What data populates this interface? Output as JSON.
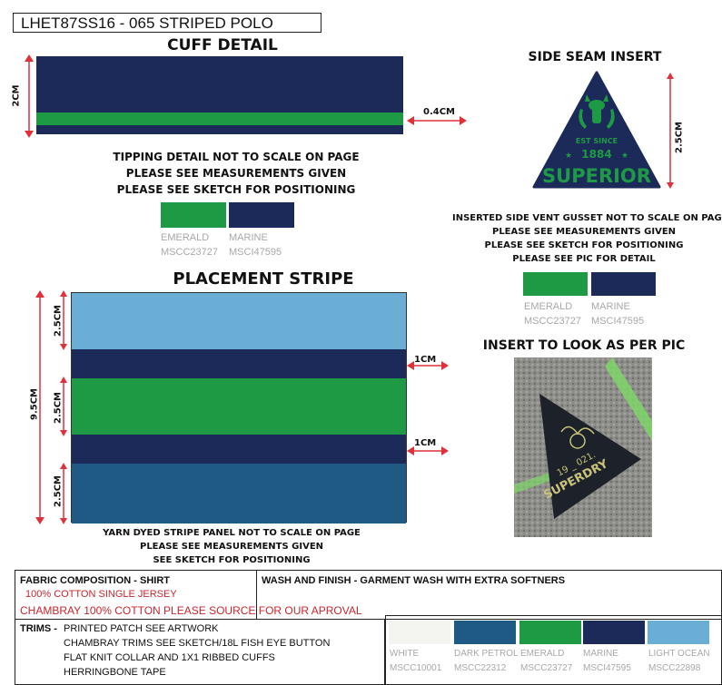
{
  "title": "LHET87SS16 - 065 STRIPED POLO",
  "cuff": {
    "heading": "CUFF  DETAIL",
    "height_label": "2CM",
    "tip_label": "0.4CM",
    "notes": [
      "TIPPING DETAIL NOT TO SCALE ON PAGE",
      "PLEASE SEE MEASUREMENTS GIVEN",
      "PLEASE SEE SKETCH FOR POSITIONING"
    ],
    "swatches": [
      {
        "name": "EMERALD",
        "code": "MSCC23727",
        "color": "#1e9a45"
      },
      {
        "name": "MARINE",
        "code": "MSCI47595",
        "color": "#1b2a58"
      }
    ]
  },
  "stripe": {
    "heading": "PLACEMENT STRIPE",
    "total_label": "9.5CM",
    "segment_labels": [
      "2.5CM",
      "2.5CM",
      "2.5CM"
    ],
    "gap_labels": [
      "1CM",
      "1CM"
    ],
    "notes": [
      "YARN DYED STRIPE PANEL NOT TO SCALE ON PAGE",
      "PLEASE SEE MEASUREMENTS GIVEN",
      "SEE SKETCH FOR POSITIONING"
    ],
    "colors": {
      "light_ocean": "#6aaed6",
      "marine": "#1b2a58",
      "emerald": "#1e9a45",
      "dark_petrol": "#1e5a84"
    }
  },
  "side_seam": {
    "heading": "SIDE SEAM INSERT",
    "height_label": "2.5CM",
    "badge": {
      "est": "EST SINCE",
      "year": "1884",
      "brand": "SUPERIOR"
    },
    "notes": [
      "INSERTED SIDE VENT GUSSET NOT TO SCALE ON PAGE",
      "PLEASE SEE MEASUREMENTS GIVEN",
      "PLEASE SEE SKETCH FOR POSITIONING",
      "PLEASE SEE PIC FOR DETAIL"
    ],
    "swatches": [
      {
        "name": "EMERALD",
        "code": "MSCC23727",
        "color": "#1e9a45"
      },
      {
        "name": "MARINE",
        "code": "MSCI47595",
        "color": "#1b2a58"
      }
    ]
  },
  "insert_pic": {
    "heading": "INSERT TO LOOK AS PER PIC",
    "text_year": "19 _ 021.",
    "text_brand": "SUPERDRY"
  },
  "fabric": {
    "heading": "FABRIC COMPOSITION - SHIRT",
    "line1": "100% COTTON  SINGLE JERSEY",
    "line2": "CHAMBRAY 100% COTTON PLEASE SOURCE FOR OUR APROVAL"
  },
  "wash": {
    "heading": "WASH AND FINISH - GARMENT  WASH WITH EXTRA SOFTNERS"
  },
  "trims": {
    "heading": "TRIMS -",
    "lines": [
      "PRINTED PATCH SEE ARTWORK",
      "CHAMBRAY TRIMS SEE SKETCH/18L FISH EYE BUTTON",
      "FLAT KNIT  COLLAR AND 1X1 RIBBED CUFFS",
      "HERRINGBONE TAPE"
    ]
  },
  "palette": [
    {
      "name": "WHITE",
      "code": "MSCC10001",
      "color": "#f4f5f1"
    },
    {
      "name": "DARK PETROL",
      "code": "MSCC22312",
      "color": "#1e5a84"
    },
    {
      "name": "EMERALD",
      "code": "MSCC23727",
      "color": "#1e9a45"
    },
    {
      "name": "MARINE",
      "code": "MSCI47595",
      "color": "#1b2a58"
    },
    {
      "name": "LIGHT OCEAN",
      "code": "MSCC22898",
      "color": "#6aaed6"
    }
  ]
}
